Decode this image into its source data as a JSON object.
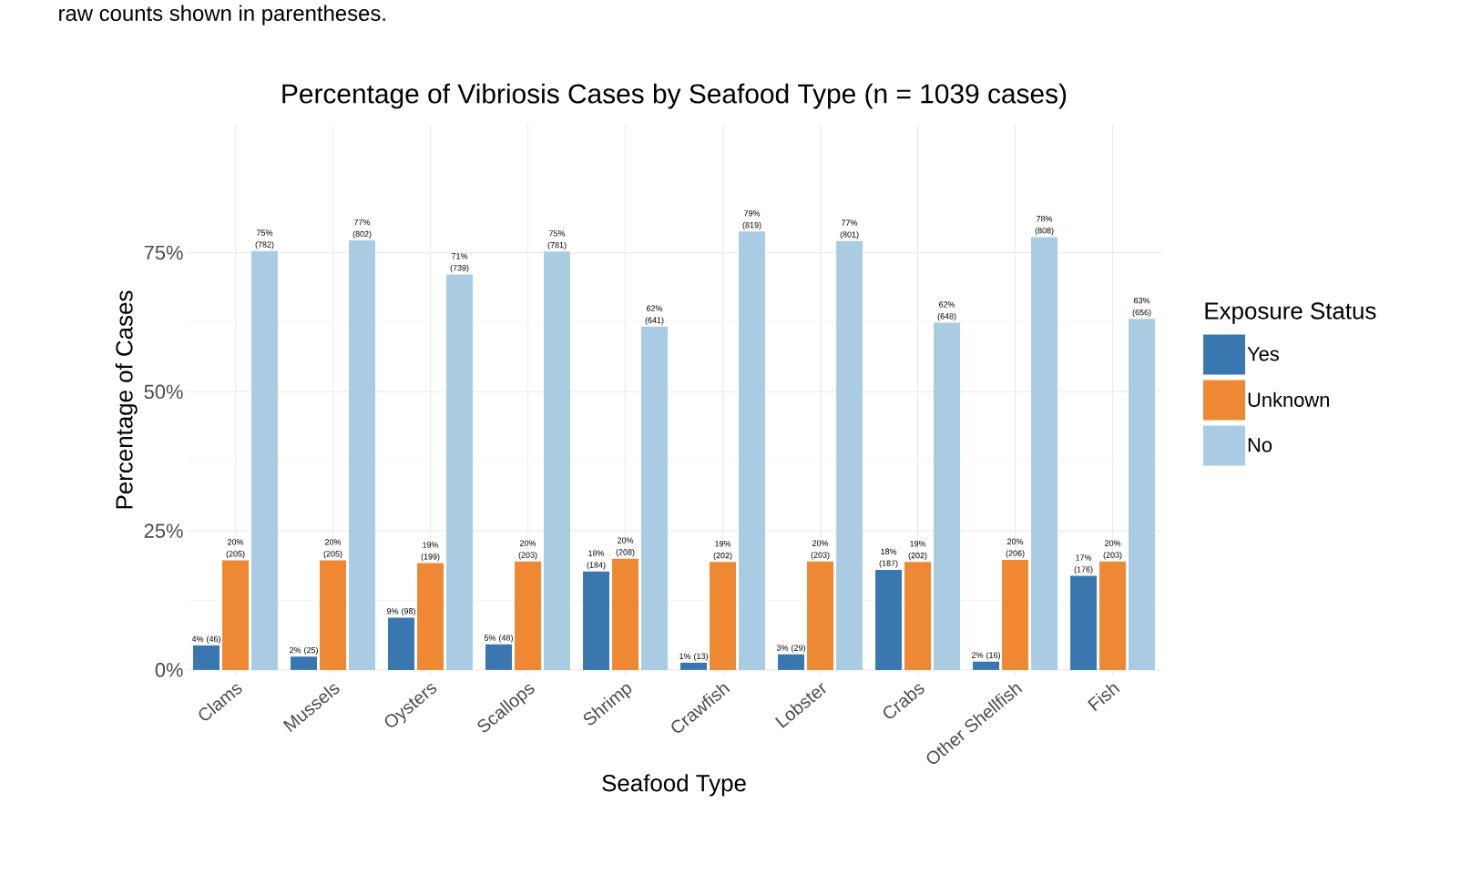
{
  "chart_data": {
    "type": "bar",
    "title": "Percentage of Vibriosis Cases by Seafood Type (n = 1039 cases)",
    "xlabel": "Seafood Type",
    "ylabel": "Percentage of Cases",
    "legend_title": "Exposure Status",
    "annotations": [
      "raw counts shown in parentheses."
    ],
    "categories": [
      "Clams",
      "Mussels",
      "Oysters",
      "Scallops",
      "Shrimp",
      "Crawfish",
      "Lobster",
      "Crabs",
      "Other Shellfish",
      "Fish"
    ],
    "series": [
      {
        "name": "Yes",
        "color": "#3a76b0",
        "values": [
          4.4,
          2.4,
          9.4,
          4.6,
          17.7,
          1.3,
          2.8,
          18.0,
          1.5,
          16.9
        ],
        "value_labels": [
          "4% (46)",
          "2% (25)",
          "9% (98)",
          "5% (48)",
          "18% (184)",
          "1% (13)",
          "3% (29)",
          "18% (187)",
          "2% (16)",
          "17% (176)"
        ]
      },
      {
        "name": "Unknown",
        "color": "#ef8833",
        "values": [
          19.7,
          19.7,
          19.2,
          19.5,
          20.0,
          19.4,
          19.5,
          19.4,
          19.8,
          19.5
        ],
        "value_labels": [
          "20% (205)",
          "20% (205)",
          "19% (199)",
          "20% (203)",
          "20% (208)",
          "19% (202)",
          "20% (203)",
          "19% (202)",
          "20% (206)",
          "20% (203)"
        ]
      },
      {
        "name": "No",
        "color": "#a9cce3",
        "values": [
          75.3,
          77.2,
          71.1,
          75.2,
          61.7,
          78.8,
          77.1,
          62.4,
          77.8,
          63.1
        ],
        "value_labels": [
          "75% (782)",
          "77% (802)",
          "71% (739)",
          "75% (781)",
          "62% (641)",
          "79% (819)",
          "77% (801)",
          "62% (648)",
          "78% (808)",
          "63% (656)"
        ]
      }
    ],
    "ylim": [
      -1,
      98
    ],
    "yticks": [
      {
        "value": 0,
        "label": "0%"
      },
      {
        "value": 25,
        "label": "25%"
      },
      {
        "value": 50,
        "label": "50%"
      },
      {
        "value": 75,
        "label": "75%"
      }
    ],
    "grid": true,
    "legend": "right"
  }
}
